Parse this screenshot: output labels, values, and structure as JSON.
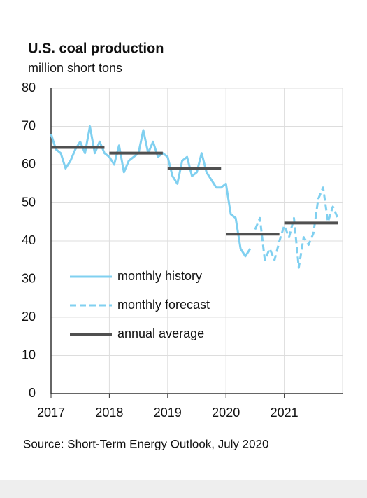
{
  "chart_data": {
    "type": "line",
    "title": "U.S. coal production",
    "subtitle": "million short tons",
    "source": "Source: Short-Term Energy Outlook, July 2020",
    "xlim": [
      2017,
      2022
    ],
    "xticks": [
      2017,
      2018,
      2019,
      2020,
      2021
    ],
    "ylim": [
      0,
      80
    ],
    "yticks": [
      0,
      10,
      20,
      30,
      40,
      50,
      60,
      70,
      80
    ],
    "grid": true,
    "series": [
      {
        "name": "monthly history",
        "color": "#80d0f0",
        "dash": false,
        "style": "line",
        "x": [
          2017,
          2017.083,
          2017.167,
          2017.25,
          2017.333,
          2017.417,
          2017.5,
          2017.583,
          2017.667,
          2017.75,
          2017.833,
          2017.917,
          2018,
          2018.083,
          2018.167,
          2018.25,
          2018.333,
          2018.417,
          2018.5,
          2018.583,
          2018.667,
          2018.75,
          2018.833,
          2018.917,
          2019,
          2019.083,
          2019.167,
          2019.25,
          2019.333,
          2019.417,
          2019.5,
          2019.583,
          2019.667,
          2019.75,
          2019.833,
          2019.917,
          2020,
          2020.083,
          2020.167,
          2020.25,
          2020.333,
          2020.417
        ],
        "values": [
          68,
          64,
          63,
          59,
          61,
          64,
          66,
          63,
          70,
          63,
          66,
          63,
          62,
          60,
          65,
          58,
          61,
          62,
          63,
          69,
          63,
          66,
          62,
          63,
          62,
          57,
          55,
          61,
          62,
          57,
          58,
          63,
          58,
          56,
          54,
          54,
          55,
          47,
          46,
          38,
          36,
          38
        ]
      },
      {
        "name": "monthly forecast",
        "color": "#80d0f0",
        "dash": true,
        "style": "line",
        "x": [
          2020.5,
          2020.583,
          2020.667,
          2020.75,
          2020.833,
          2020.917,
          2021,
          2021.083,
          2021.167,
          2021.25,
          2021.333,
          2021.417,
          2021.5,
          2021.583,
          2021.667,
          2021.75,
          2021.833,
          2021.917
        ],
        "values": [
          43,
          46,
          35,
          38,
          35,
          40,
          44,
          41,
          46,
          33,
          41,
          39,
          42,
          51,
          54,
          45,
          49,
          46
        ]
      },
      {
        "name": "annual average",
        "color": "#505050",
        "dash": false,
        "style": "annual",
        "x": [
          2017,
          2018,
          2019,
          2020,
          2021
        ],
        "values": [
          64.5,
          63,
          59,
          41.8,
          44.7
        ]
      }
    ]
  }
}
